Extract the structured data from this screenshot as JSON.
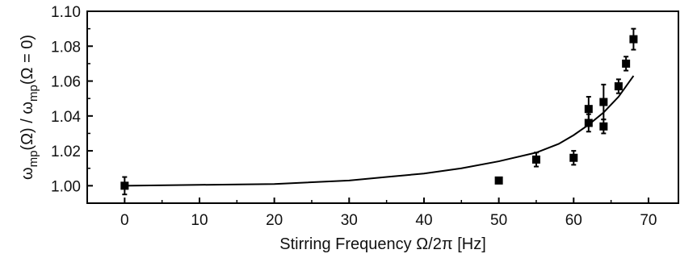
{
  "chart_data": {
    "type": "scatter",
    "title": "",
    "xlabel": "Stirring Frequency Ω/2π [Hz]",
    "ylabel": {
      "omega1": "ω",
      "sub1": "mp",
      "mid": "(Ω) / ω",
      "sub2": "mp",
      "tail": "(Ω = 0)"
    },
    "xlim": [
      -5,
      74
    ],
    "ylim": [
      0.99,
      1.1
    ],
    "x_ticks": [
      0,
      10,
      20,
      30,
      40,
      50,
      60,
      70
    ],
    "x_tick_labels": [
      "0",
      "10",
      "20",
      "30",
      "40",
      "50",
      "60",
      "70"
    ],
    "y_ticks": [
      1.0,
      1.02,
      1.04,
      1.06,
      1.08,
      1.1
    ],
    "y_tick_labels": [
      "1.00",
      "1.02",
      "1.04",
      "1.06",
      "1.08",
      "1.10"
    ],
    "grid": false,
    "legend": "none",
    "series": [
      {
        "kind": "points-with-error-bars",
        "marker": "square",
        "color": "#000000",
        "points": [
          {
            "x": 0,
            "y": 1.0,
            "err": 0.005
          },
          {
            "x": 50,
            "y": 1.003,
            "err": 0.001
          },
          {
            "x": 55,
            "y": 1.015,
            "err": 0.004
          },
          {
            "x": 60,
            "y": 1.016,
            "err": 0.004
          },
          {
            "x": 62,
            "y": 1.044,
            "err": 0.007
          },
          {
            "x": 62,
            "y": 1.036,
            "err": 0.005
          },
          {
            "x": 64,
            "y": 1.048,
            "err": 0.01
          },
          {
            "x": 64,
            "y": 1.034,
            "err": 0.004
          },
          {
            "x": 66,
            "y": 1.057,
            "err": 0.004
          },
          {
            "x": 67,
            "y": 1.07,
            "err": 0.004
          },
          {
            "x": 68,
            "y": 1.084,
            "err": 0.006
          }
        ]
      },
      {
        "kind": "fit-curve",
        "color": "#000000",
        "x": [
          0,
          10,
          20,
          30,
          35,
          40,
          45,
          50,
          55,
          58,
          60,
          62,
          64,
          66,
          68
        ],
        "y": [
          1.0,
          1.0005,
          1.001,
          1.003,
          1.005,
          1.007,
          1.01,
          1.014,
          1.019,
          1.024,
          1.029,
          1.035,
          1.042,
          1.051,
          1.063
        ]
      }
    ]
  }
}
